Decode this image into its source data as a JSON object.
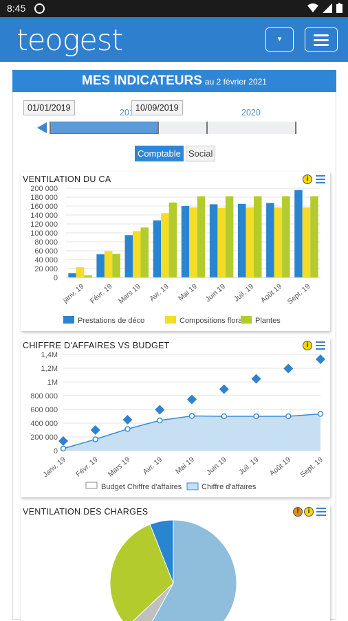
{
  "status_bar": {
    "time": "8:45"
  },
  "app": {
    "logo": "TEOGEST",
    "dropdown_icon": "▾"
  },
  "panel": {
    "title": "MES INDICATEURS",
    "date": "au 2 février 2021"
  },
  "period": {
    "start": "01/01/2019",
    "end": "10/09/2019",
    "years": [
      "2019",
      "2020"
    ],
    "selected_fraction": [
      0.0,
      0.44
    ]
  },
  "toggles": [
    {
      "label": "Comptable",
      "active": true
    },
    {
      "label": "Social",
      "active": false
    }
  ],
  "colors": {
    "deco": "#2a85d1",
    "florales": "#f3dd25",
    "plantes": "#b4cb2d",
    "accent": "#2f86d6"
  },
  "chart_data": [
    {
      "type": "bar",
      "title": "VENTILATION DU CA",
      "categories": [
        "janv. 19",
        "Févr. 19",
        "Mars 19",
        "Avr. 19",
        "Mai 19",
        "Juin 19",
        "Juil. 19",
        "Août 19",
        "Sept. 19"
      ],
      "series": [
        {
          "name": "Prestations de déco",
          "values": [
            10000,
            52000,
            95000,
            128000,
            160000,
            164000,
            165000,
            167000,
            196000
          ]
        },
        {
          "name": "Compositions florales",
          "values": [
            23000,
            59000,
            104000,
            144000,
            157000,
            156000,
            157000,
            157000,
            157000
          ]
        },
        {
          "name": "Plantes",
          "values": [
            5000,
            53000,
            112000,
            168000,
            182000,
            182000,
            182000,
            182000,
            182000
          ]
        }
      ],
      "yticks": [
        "200 000",
        "180 000",
        "160 000",
        "140 000",
        "120 000",
        "100 000",
        "80 000",
        "60 000",
        "40 000",
        "20 000",
        "0"
      ],
      "ylim": [
        0,
        200000
      ]
    },
    {
      "type": "line",
      "title": "CHIFFRE D'AFFAIRES VS BUDGET",
      "categories": [
        "Janv. 19",
        "Févr. 19",
        "Mars 19",
        "Avr. 19",
        "Mai 19",
        "Juin 19",
        "Juil. 19",
        "Août 19",
        "Sept. 19"
      ],
      "series": [
        {
          "name": "Budget Chiffre d'affaires",
          "values": [
            140000,
            300000,
            450000,
            595000,
            745000,
            895000,
            1045000,
            1195000,
            1330000
          ]
        },
        {
          "name": "Chiffre d'affaires",
          "values": [
            30000,
            165000,
            315000,
            440000,
            505000,
            500000,
            500000,
            500000,
            535000
          ]
        }
      ],
      "yticks": [
        "1,4M",
        "1,2M",
        "1M",
        "800 000",
        "600 000",
        "400 000",
        "200 000",
        "0"
      ],
      "ylim": [
        0,
        1400000
      ]
    },
    {
      "type": "pie",
      "title": "VENTILATION DES CHARGES",
      "slices": [
        {
          "value": 58,
          "color": "#8fbddc"
        },
        {
          "value": 5,
          "color": "#c0c0c0"
        },
        {
          "value": 31,
          "color": "#b4cb2d"
        },
        {
          "value": 6,
          "color": "#2a85d1"
        }
      ]
    }
  ]
}
